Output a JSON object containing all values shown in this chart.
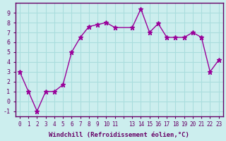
{
  "x": [
    0,
    1,
    2,
    3,
    4,
    5,
    6,
    7,
    8,
    9,
    10,
    11,
    13,
    14,
    15,
    16,
    17,
    18,
    19,
    20,
    21,
    22,
    23
  ],
  "y": [
    3,
    1,
    -1,
    1,
    1,
    1.7,
    5,
    6.5,
    7.6,
    7.8,
    8.0,
    7.5,
    7.5,
    9.4,
    7,
    7.9,
    6.5,
    6.5,
    6.5,
    7,
    6.5,
    3,
    4.2
  ],
  "line_color": "#990099",
  "marker": "*",
  "background_color": "#cceeee",
  "grid_color": "#aadddd",
  "xlabel": "Windchill (Refroidissement éolien,°C)",
  "xlim": [
    -0.5,
    23.5
  ],
  "ylim": [
    -1.5,
    10
  ],
  "yticks": [
    -1,
    0,
    1,
    2,
    3,
    4,
    5,
    6,
    7,
    8,
    9
  ],
  "axis_color": "#660066",
  "tick_color": "#660066",
  "label_color": "#660066",
  "font": "monospace",
  "xtick_positions": [
    0,
    1,
    2,
    3,
    4,
    5,
    6,
    7,
    8,
    9,
    10,
    11,
    12,
    13,
    14,
    15,
    16,
    17,
    18,
    19,
    20,
    21,
    22,
    23
  ],
  "xtick_labels": [
    "0",
    "1",
    "2",
    "3",
    "4",
    "5",
    "6",
    "7",
    "8",
    "9",
    "10",
    "11",
    "",
    "13",
    "14",
    "15",
    "16",
    "17",
    "18",
    "19",
    "20",
    "21",
    "22",
    "23"
  ]
}
